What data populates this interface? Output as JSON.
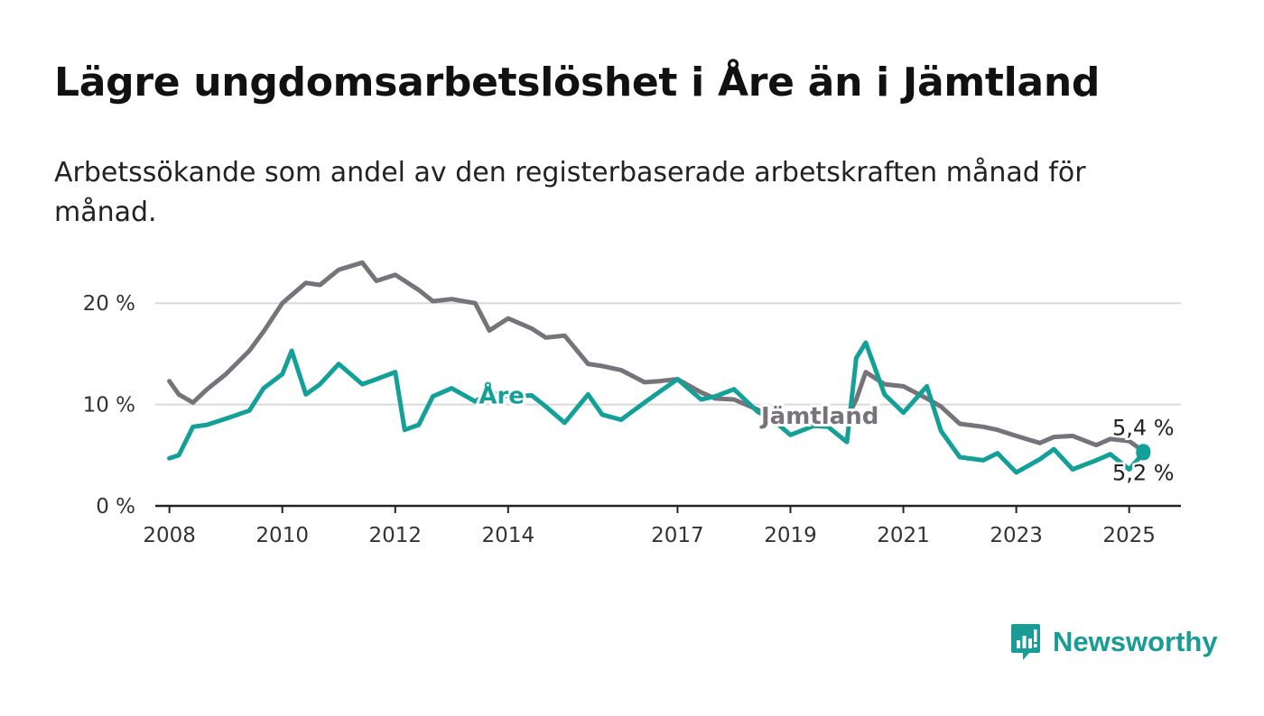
{
  "header": {
    "title": "Lägre ungdomsarbetslöshet i Åre än i Jämtland",
    "subtitle": "Arbetssökande som andel av den registerbaserade arbetskraften månad för månad."
  },
  "brand": {
    "name": "Newsworthy",
    "icon": "newsworthy-logo-icon",
    "color": "#1a9c96"
  },
  "colors": {
    "are": "#12a098",
    "jamtland": "#77737a",
    "grid": "#d9d9d9",
    "axis": "#222222"
  },
  "chart_data": {
    "type": "line",
    "title": "Lägre ungdomsarbetslöshet i Åre än i Jämtland",
    "subtitle": "Arbetssökande som andel av den registerbaserade arbetskraften månad för månad.",
    "x_ticks": [
      "2008",
      "2010",
      "2012",
      "2014",
      "2017",
      "2019",
      "2021",
      "2023",
      "2025"
    ],
    "y_ticks": [
      "0 %",
      "10 %",
      "20 %"
    ],
    "ylim": [
      0,
      25
    ],
    "xlim": [
      "2007-10",
      "2025-12"
    ],
    "grid": true,
    "series": [
      {
        "name": "Jämtland",
        "color": "#77737a",
        "end_label": "5,4 %",
        "points": [
          [
            "2008-01",
            12.3
          ],
          [
            "2008-03",
            11.0
          ],
          [
            "2008-06",
            10.2
          ],
          [
            "2008-09",
            11.5
          ],
          [
            "2009-01",
            13.0
          ],
          [
            "2009-06",
            15.3
          ],
          [
            "2009-09",
            17.2
          ],
          [
            "2010-01",
            20.0
          ],
          [
            "2010-06",
            22.0
          ],
          [
            "2010-09",
            21.8
          ],
          [
            "2011-01",
            23.3
          ],
          [
            "2011-06",
            24.0
          ],
          [
            "2011-09",
            22.2
          ],
          [
            "2012-01",
            22.8
          ],
          [
            "2012-06",
            21.3
          ],
          [
            "2012-09",
            20.2
          ],
          [
            "2013-01",
            20.4
          ],
          [
            "2013-06",
            20.0
          ],
          [
            "2013-09",
            17.3
          ],
          [
            "2014-01",
            18.5
          ],
          [
            "2014-06",
            17.5
          ],
          [
            "2014-09",
            16.6
          ],
          [
            "2015-01",
            16.8
          ],
          [
            "2015-06",
            14.0
          ],
          [
            "2015-09",
            13.8
          ],
          [
            "2016-01",
            13.4
          ],
          [
            "2016-06",
            12.2
          ],
          [
            "2016-09",
            12.3
          ],
          [
            "2017-01",
            12.5
          ],
          [
            "2017-06",
            11.2
          ],
          [
            "2017-09",
            10.6
          ],
          [
            "2018-01",
            10.5
          ],
          [
            "2018-06",
            9.5
          ],
          [
            "2018-09",
            8.8
          ],
          [
            "2019-01",
            8.5
          ],
          [
            "2019-06",
            8.2
          ],
          [
            "2019-09",
            8.2
          ],
          [
            "2020-01",
            8.6
          ],
          [
            "2020-03",
            10.5
          ],
          [
            "2020-05",
            13.2
          ],
          [
            "2020-09",
            12.0
          ],
          [
            "2021-01",
            11.8
          ],
          [
            "2021-06",
            10.6
          ],
          [
            "2021-09",
            9.8
          ],
          [
            "2022-01",
            8.1
          ],
          [
            "2022-06",
            7.8
          ],
          [
            "2022-09",
            7.5
          ],
          [
            "2023-01",
            6.9
          ],
          [
            "2023-06",
            6.2
          ],
          [
            "2023-09",
            6.8
          ],
          [
            "2024-01",
            6.9
          ],
          [
            "2024-06",
            6.0
          ],
          [
            "2024-09",
            6.6
          ],
          [
            "2025-01",
            6.4
          ],
          [
            "2025-04",
            5.4
          ]
        ]
      },
      {
        "name": "Åre",
        "color": "#12a098",
        "end_label": "5,2 %",
        "points": [
          [
            "2008-01",
            4.7
          ],
          [
            "2008-03",
            5.0
          ],
          [
            "2008-06",
            7.8
          ],
          [
            "2008-09",
            8.0
          ],
          [
            "2009-01",
            8.6
          ],
          [
            "2009-06",
            9.4
          ],
          [
            "2009-09",
            11.6
          ],
          [
            "2010-01",
            13.0
          ],
          [
            "2010-03",
            15.3
          ],
          [
            "2010-06",
            11.0
          ],
          [
            "2010-09",
            12.0
          ],
          [
            "2011-01",
            14.0
          ],
          [
            "2011-06",
            12.0
          ],
          [
            "2011-09",
            12.5
          ],
          [
            "2012-01",
            13.2
          ],
          [
            "2012-03",
            7.5
          ],
          [
            "2012-06",
            8.0
          ],
          [
            "2012-09",
            10.8
          ],
          [
            "2013-01",
            11.6
          ],
          [
            "2013-06",
            10.3
          ],
          [
            "2013-09",
            11.2
          ],
          [
            "2014-01",
            10.8
          ],
          [
            "2014-06",
            10.9
          ],
          [
            "2014-09",
            9.8
          ],
          [
            "2015-01",
            8.2
          ],
          [
            "2015-06",
            11.0
          ],
          [
            "2015-09",
            9.0
          ],
          [
            "2016-01",
            8.5
          ],
          [
            "2016-06",
            10.2
          ],
          [
            "2016-09",
            11.2
          ],
          [
            "2017-01",
            12.5
          ],
          [
            "2017-06",
            10.5
          ],
          [
            "2017-09",
            10.8
          ],
          [
            "2018-01",
            11.5
          ],
          [
            "2018-06",
            9.3
          ],
          [
            "2018-09",
            8.6
          ],
          [
            "2019-01",
            7.0
          ],
          [
            "2019-06",
            7.9
          ],
          [
            "2019-09",
            7.8
          ],
          [
            "2020-01",
            6.3
          ],
          [
            "2020-03",
            14.6
          ],
          [
            "2020-05",
            16.1
          ],
          [
            "2020-09",
            11.0
          ],
          [
            "2021-01",
            9.2
          ],
          [
            "2021-06",
            11.8
          ],
          [
            "2021-09",
            7.4
          ],
          [
            "2022-01",
            4.8
          ],
          [
            "2022-06",
            4.5
          ],
          [
            "2022-09",
            5.2
          ],
          [
            "2023-01",
            3.3
          ],
          [
            "2023-06",
            4.6
          ],
          [
            "2023-09",
            5.6
          ],
          [
            "2024-01",
            3.6
          ],
          [
            "2024-06",
            4.5
          ],
          [
            "2024-09",
            5.1
          ],
          [
            "2025-01",
            3.6
          ],
          [
            "2025-04",
            5.2
          ]
        ]
      }
    ]
  }
}
